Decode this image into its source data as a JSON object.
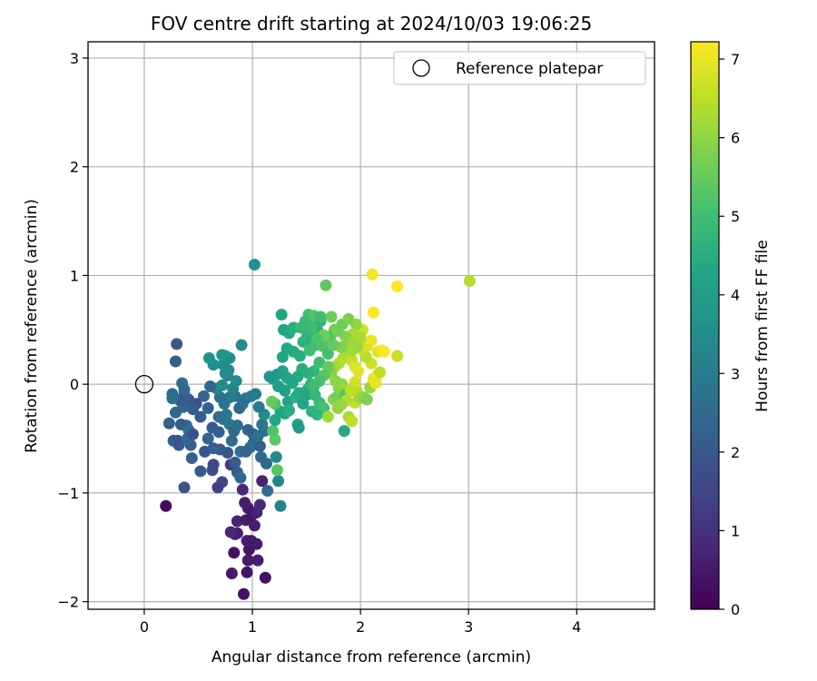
{
  "chart_data": {
    "type": "scatter",
    "title": "FOV centre drift starting at 2024/10/03 19:06:25",
    "xlabel": "Angular distance from reference (arcmin)",
    "ylabel": "Rotation from reference (arcmin)",
    "xlim": [
      -0.52,
      4.72
    ],
    "ylim": [
      -2.07,
      3.15
    ],
    "xticks": [
      0,
      1,
      2,
      3,
      4
    ],
    "yticks": [
      -2,
      -1,
      0,
      1,
      2,
      3
    ],
    "xtick_labels": [
      "0",
      "1",
      "2",
      "3",
      "4"
    ],
    "ytick_labels": [
      "−2",
      "−1",
      "0",
      "1",
      "2",
      "3"
    ],
    "grid": true,
    "legend": {
      "label": "Reference platepar",
      "placement": "top-right"
    },
    "reference_point": {
      "x": 0,
      "y": 0
    },
    "colorbar": {
      "label": "Hours from first FF file",
      "min": 0,
      "max": 7.22,
      "ticks": [
        0,
        1,
        2,
        3,
        4,
        5,
        6,
        7
      ],
      "tick_labels": [
        "0",
        "1",
        "2",
        "3",
        "4",
        "5",
        "6",
        "7"
      ],
      "colormap": "viridis"
    },
    "points": [
      {
        "x": 0.2,
        "y": -1.12,
        "t": 0.2
      },
      {
        "x": 0.92,
        "y": -1.93,
        "t": 0.3
      },
      {
        "x": 1.12,
        "y": -1.78,
        "t": 0.4
      },
      {
        "x": 0.81,
        "y": -1.74,
        "t": 0.5
      },
      {
        "x": 0.95,
        "y": -1.73,
        "t": 0.4
      },
      {
        "x": 0.96,
        "y": -1.62,
        "t": 0.5
      },
      {
        "x": 1.05,
        "y": -1.62,
        "t": 0.6
      },
      {
        "x": 0.83,
        "y": -1.55,
        "t": 0.3
      },
      {
        "x": 0.97,
        "y": -1.52,
        "t": 0.4
      },
      {
        "x": 1.04,
        "y": -1.47,
        "t": 0.5
      },
      {
        "x": 0.95,
        "y": -1.44,
        "t": 0.6
      },
      {
        "x": 0.99,
        "y": -1.44,
        "t": 0.5
      },
      {
        "x": 0.84,
        "y": -1.38,
        "t": 0.7
      },
      {
        "x": 0.86,
        "y": -1.37,
        "t": 0.6
      },
      {
        "x": 0.8,
        "y": -1.36,
        "t": 0.8
      },
      {
        "x": 1.02,
        "y": -1.3,
        "t": 0.6
      },
      {
        "x": 0.86,
        "y": -1.26,
        "t": 0.7
      },
      {
        "x": 0.94,
        "y": -1.25,
        "t": 0.5
      },
      {
        "x": 1.0,
        "y": -1.2,
        "t": 0.4
      },
      {
        "x": 1.04,
        "y": -1.18,
        "t": 0.7
      },
      {
        "x": 0.96,
        "y": -1.14,
        "t": 0.5
      },
      {
        "x": 1.07,
        "y": -1.11,
        "t": 0.8
      },
      {
        "x": 0.93,
        "y": -1.09,
        "t": 0.6
      },
      {
        "x": 1.09,
        "y": -0.89,
        "t": 0.7
      },
      {
        "x": 0.91,
        "y": -0.97,
        "t": 0.9
      },
      {
        "x": 1.14,
        "y": -0.98,
        "t": 2.5
      },
      {
        "x": 0.37,
        "y": -0.95,
        "t": 1.9
      },
      {
        "x": 0.72,
        "y": -0.9,
        "t": 1.5
      },
      {
        "x": 0.8,
        "y": -0.74,
        "t": 1.3
      },
      {
        "x": 0.64,
        "y": -0.74,
        "t": 1.6
      },
      {
        "x": 0.63,
        "y": -0.79,
        "t": 1.7
      },
      {
        "x": 0.52,
        "y": -0.8,
        "t": 2.0
      },
      {
        "x": 0.68,
        "y": -0.95,
        "t": 1.4
      },
      {
        "x": 0.86,
        "y": -0.81,
        "t": 2.2
      },
      {
        "x": 0.89,
        "y": -0.86,
        "t": 2.4
      },
      {
        "x": 0.84,
        "y": -0.72,
        "t": 2.1
      },
      {
        "x": 0.89,
        "y": -0.62,
        "t": 2.6
      },
      {
        "x": 0.77,
        "y": -0.63,
        "t": 1.8
      },
      {
        "x": 0.7,
        "y": -0.6,
        "t": 2.0
      },
      {
        "x": 0.64,
        "y": -0.59,
        "t": 2.2
      },
      {
        "x": 0.56,
        "y": -0.62,
        "t": 1.9
      },
      {
        "x": 0.59,
        "y": -0.5,
        "t": 2.3
      },
      {
        "x": 0.43,
        "y": -0.56,
        "t": 2.1
      },
      {
        "x": 0.32,
        "y": -0.56,
        "t": 2.0
      },
      {
        "x": 0.27,
        "y": -0.52,
        "t": 2.2
      },
      {
        "x": 0.31,
        "y": -0.52,
        "t": 1.9
      },
      {
        "x": 0.44,
        "y": -0.68,
        "t": 2.3
      },
      {
        "x": 0.4,
        "y": -0.5,
        "t": 2.5
      },
      {
        "x": 0.39,
        "y": -0.38,
        "t": 2.4
      },
      {
        "x": 0.34,
        "y": -0.37,
        "t": 2.1
      },
      {
        "x": 0.23,
        "y": -0.36,
        "t": 2.2
      },
      {
        "x": 0.41,
        "y": -0.42,
        "t": 2.6
      },
      {
        "x": 0.45,
        "y": -0.46,
        "t": 1.8
      },
      {
        "x": 0.63,
        "y": -0.4,
        "t": 2.0
      },
      {
        "x": 0.69,
        "y": -0.44,
        "t": 2.2
      },
      {
        "x": 0.69,
        "y": -0.3,
        "t": 2.5
      },
      {
        "x": 0.73,
        "y": -0.32,
        "t": 2.6
      },
      {
        "x": 0.76,
        "y": -0.28,
        "t": 2.8
      },
      {
        "x": 0.79,
        "y": -0.37,
        "t": 2.9
      },
      {
        "x": 0.83,
        "y": -0.43,
        "t": 2.4
      },
      {
        "x": 0.86,
        "y": -0.38,
        "t": 2.7
      },
      {
        "x": 0.81,
        "y": -0.52,
        "t": 2.5
      },
      {
        "x": 0.96,
        "y": -0.42,
        "t": 2.3
      },
      {
        "x": 1.01,
        "y": -0.46,
        "t": 2.2
      },
      {
        "x": 1.01,
        "y": -0.54,
        "t": 2.4
      },
      {
        "x": 0.98,
        "y": -0.58,
        "t": 2.6
      },
      {
        "x": 0.94,
        "y": -0.62,
        "t": 2.3
      },
      {
        "x": 1.07,
        "y": -0.57,
        "t": 2.1
      },
      {
        "x": 1.08,
        "y": -0.67,
        "t": 2.5
      },
      {
        "x": 1.11,
        "y": -0.43,
        "t": 2.7
      },
      {
        "x": 1.09,
        "y": -0.37,
        "t": 2.9
      },
      {
        "x": 1.05,
        "y": -0.48,
        "t": 2.6
      },
      {
        "x": 1.13,
        "y": -0.73,
        "t": 2.4
      },
      {
        "x": 1.22,
        "y": -0.67,
        "t": 3.4
      },
      {
        "x": 1.24,
        "y": -0.89,
        "t": 3.3
      },
      {
        "x": 1.26,
        "y": -1.12,
        "t": 3.2
      },
      {
        "x": 1.23,
        "y": -0.79,
        "t": 5.3
      },
      {
        "x": 1.21,
        "y": -0.51,
        "t": 5.4
      },
      {
        "x": 1.19,
        "y": -0.43,
        "t": 5.2
      },
      {
        "x": 1.21,
        "y": -0.33,
        "t": 4.3
      },
      {
        "x": 1.11,
        "y": -0.28,
        "t": 3.5
      },
      {
        "x": 1.06,
        "y": -0.21,
        "t": 3.0
      },
      {
        "x": 1.03,
        "y": -0.09,
        "t": 2.9
      },
      {
        "x": 0.99,
        "y": -0.11,
        "t": 3.1
      },
      {
        "x": 0.94,
        "y": -0.13,
        "t": 2.8
      },
      {
        "x": 0.91,
        "y": -0.18,
        "t": 2.6
      },
      {
        "x": 0.88,
        "y": -0.22,
        "t": 2.5
      },
      {
        "x": 0.84,
        "y": -0.11,
        "t": 2.7
      },
      {
        "x": 0.82,
        "y": -0.04,
        "t": 3.2
      },
      {
        "x": 0.79,
        "y": -0.12,
        "t": 3.0
      },
      {
        "x": 0.74,
        "y": -0.18,
        "t": 2.9
      },
      {
        "x": 0.7,
        "y": -0.12,
        "t": 2.6
      },
      {
        "x": 0.67,
        "y": -0.04,
        "t": 3.2
      },
      {
        "x": 0.72,
        "y": -0.01,
        "t": 3.4
      },
      {
        "x": 0.77,
        "y": 0.08,
        "t": 3.3
      },
      {
        "x": 0.85,
        "y": 0.03,
        "t": 3.5
      },
      {
        "x": 0.78,
        "y": 0.13,
        "t": 3.4
      },
      {
        "x": 0.73,
        "y": 0.18,
        "t": 3.5
      },
      {
        "x": 0.64,
        "y": 0.18,
        "t": 3.6
      },
      {
        "x": 0.6,
        "y": 0.24,
        "t": 3.7
      },
      {
        "x": 0.72,
        "y": 0.27,
        "t": 3.8
      },
      {
        "x": 0.75,
        "y": 0.26,
        "t": 3.7
      },
      {
        "x": 0.79,
        "y": 0.24,
        "t": 3.6
      },
      {
        "x": 0.75,
        "y": 0.1,
        "t": 3.4
      },
      {
        "x": 0.9,
        "y": 0.36,
        "t": 3.5
      },
      {
        "x": 1.02,
        "y": 1.1,
        "t": 3.6
      },
      {
        "x": 0.61,
        "y": -0.02,
        "t": 2.4
      },
      {
        "x": 0.55,
        "y": -0.11,
        "t": 2.3
      },
      {
        "x": 0.59,
        "y": -0.22,
        "t": 2.2
      },
      {
        "x": 0.52,
        "y": -0.3,
        "t": 2.1
      },
      {
        "x": 0.48,
        "y": -0.18,
        "t": 1.8
      },
      {
        "x": 0.41,
        "y": -0.14,
        "t": 2.0
      },
      {
        "x": 0.37,
        "y": -0.1,
        "t": 2.1
      },
      {
        "x": 0.45,
        "y": -0.23,
        "t": 2.2
      },
      {
        "x": 0.36,
        "y": -0.21,
        "t": 2.3
      },
      {
        "x": 0.29,
        "y": -0.26,
        "t": 2.4
      },
      {
        "x": 0.33,
        "y": -0.15,
        "t": 2.1
      },
      {
        "x": 0.26,
        "y": -0.09,
        "t": 2.5
      },
      {
        "x": 0.26,
        "y": -0.13,
        "t": 2.6
      },
      {
        "x": 0.35,
        "y": 0.01,
        "t": 2.7
      },
      {
        "x": 0.37,
        "y": -0.05,
        "t": 2.5
      },
      {
        "x": 0.3,
        "y": 0.37,
        "t": 2.0
      },
      {
        "x": 0.29,
        "y": 0.21,
        "t": 2.2
      },
      {
        "x": 1.27,
        "y": 0.64,
        "t": 4.3
      },
      {
        "x": 1.29,
        "y": 0.5,
        "t": 4.2
      },
      {
        "x": 1.34,
        "y": 0.47,
        "t": 4.4
      },
      {
        "x": 1.38,
        "y": 0.52,
        "t": 4.5
      },
      {
        "x": 1.32,
        "y": 0.33,
        "t": 4.3
      },
      {
        "x": 1.28,
        "y": 0.25,
        "t": 4.2
      },
      {
        "x": 1.38,
        "y": 0.3,
        "t": 4.4
      },
      {
        "x": 1.44,
        "y": 0.26,
        "t": 4.5
      },
      {
        "x": 1.47,
        "y": 0.39,
        "t": 4.6
      },
      {
        "x": 1.51,
        "y": 0.45,
        "t": 4.7
      },
      {
        "x": 1.54,
        "y": 0.39,
        "t": 4.5
      },
      {
        "x": 1.58,
        "y": 0.36,
        "t": 4.8
      },
      {
        "x": 1.6,
        "y": 0.5,
        "t": 4.6
      },
      {
        "x": 1.55,
        "y": 0.6,
        "t": 4.5
      },
      {
        "x": 1.63,
        "y": 0.58,
        "t": 4.7
      },
      {
        "x": 1.52,
        "y": 0.64,
        "t": 5.1
      },
      {
        "x": 1.57,
        "y": 0.63,
        "t": 5.2
      },
      {
        "x": 1.63,
        "y": 0.62,
        "t": 5.0
      },
      {
        "x": 1.68,
        "y": 0.91,
        "t": 5.4
      },
      {
        "x": 1.73,
        "y": 0.62,
        "t": 5.6
      },
      {
        "x": 1.76,
        "y": 0.5,
        "t": 5.5
      },
      {
        "x": 1.72,
        "y": 0.44,
        "t": 5.3
      },
      {
        "x": 1.67,
        "y": 0.4,
        "t": 5.4
      },
      {
        "x": 1.65,
        "y": 0.35,
        "t": 5.2
      },
      {
        "x": 1.7,
        "y": 0.28,
        "t": 5.1
      },
      {
        "x": 1.62,
        "y": 0.2,
        "t": 4.9
      },
      {
        "x": 1.57,
        "y": 0.12,
        "t": 4.8
      },
      {
        "x": 1.52,
        "y": 0.1,
        "t": 4.6
      },
      {
        "x": 1.46,
        "y": 0.14,
        "t": 4.5
      },
      {
        "x": 1.42,
        "y": 0.07,
        "t": 4.4
      },
      {
        "x": 1.37,
        "y": 0.01,
        "t": 4.3
      },
      {
        "x": 1.32,
        "y": 0.06,
        "t": 4.2
      },
      {
        "x": 1.28,
        "y": 0.12,
        "t": 4.1
      },
      {
        "x": 1.23,
        "y": 0.09,
        "t": 4.0
      },
      {
        "x": 1.19,
        "y": 0.05,
        "t": 3.9
      },
      {
        "x": 1.16,
        "y": 0.07,
        "t": 3.8
      },
      {
        "x": 1.24,
        "y": -0.02,
        "t": 4.0
      },
      {
        "x": 1.3,
        "y": -0.06,
        "t": 4.1
      },
      {
        "x": 1.33,
        "y": -0.16,
        "t": 4.2
      },
      {
        "x": 1.3,
        "y": -0.27,
        "t": 4.4
      },
      {
        "x": 1.26,
        "y": -0.25,
        "t": 4.3
      },
      {
        "x": 1.34,
        "y": -0.24,
        "t": 4.5
      },
      {
        "x": 1.4,
        "y": -0.12,
        "t": 4.6
      },
      {
        "x": 1.43,
        "y": -0.08,
        "t": 4.4
      },
      {
        "x": 1.47,
        "y": -0.18,
        "t": 4.2
      },
      {
        "x": 1.51,
        "y": -0.05,
        "t": 4.5
      },
      {
        "x": 1.5,
        "y": -0.1,
        "t": 4.3
      },
      {
        "x": 1.54,
        "y": 0.0,
        "t": 4.6
      },
      {
        "x": 1.58,
        "y": -0.1,
        "t": 4.8
      },
      {
        "x": 1.62,
        "y": -0.17,
        "t": 4.9
      },
      {
        "x": 1.66,
        "y": -0.22,
        "t": 5.1
      },
      {
        "x": 1.6,
        "y": -0.28,
        "t": 4.7
      },
      {
        "x": 1.55,
        "y": -0.25,
        "t": 4.6
      },
      {
        "x": 1.42,
        "y": -0.37,
        "t": 4.1
      },
      {
        "x": 1.43,
        "y": -0.4,
        "t": 3.9
      },
      {
        "x": 1.21,
        "y": -0.18,
        "t": 5.2
      },
      {
        "x": 1.18,
        "y": -0.16,
        "t": 5.5
      },
      {
        "x": 1.7,
        "y": -0.3,
        "t": 6.2
      },
      {
        "x": 1.75,
        "y": -0.14,
        "t": 6.0
      },
      {
        "x": 1.78,
        "y": -0.12,
        "t": 5.7
      },
      {
        "x": 1.8,
        "y": -0.04,
        "t": 5.9
      },
      {
        "x": 1.83,
        "y": 0.0,
        "t": 6.1
      },
      {
        "x": 1.85,
        "y": -0.43,
        "t": 4.4
      },
      {
        "x": 1.86,
        "y": -0.1,
        "t": 5.3
      },
      {
        "x": 1.89,
        "y": -0.3,
        "t": 6.3
      },
      {
        "x": 1.92,
        "y": -0.34,
        "t": 6.5
      },
      {
        "x": 1.95,
        "y": -0.17,
        "t": 6.6
      },
      {
        "x": 1.97,
        "y": -0.07,
        "t": 6.4
      },
      {
        "x": 1.99,
        "y": -0.13,
        "t": 6.2
      },
      {
        "x": 2.03,
        "y": -0.12,
        "t": 6.0
      },
      {
        "x": 2.06,
        "y": -0.14,
        "t": 5.8
      },
      {
        "x": 2.09,
        "y": -0.03,
        "t": 6.1
      },
      {
        "x": 2.12,
        "y": 0.05,
        "t": 6.9
      },
      {
        "x": 2.15,
        "y": 0.08,
        "t": 7.1
      },
      {
        "x": 2.14,
        "y": 0.01,
        "t": 7.0
      },
      {
        "x": 2.18,
        "y": 0.11,
        "t": 6.5
      },
      {
        "x": 2.1,
        "y": 0.19,
        "t": 6.7
      },
      {
        "x": 2.05,
        "y": 0.25,
        "t": 6.4
      },
      {
        "x": 2.01,
        "y": 0.32,
        "t": 6.6
      },
      {
        "x": 2.06,
        "y": 0.35,
        "t": 6.8
      },
      {
        "x": 2.1,
        "y": 0.4,
        "t": 7.0
      },
      {
        "x": 2.16,
        "y": 0.3,
        "t": 6.9
      },
      {
        "x": 2.2,
        "y": 0.31,
        "t": 7.1
      },
      {
        "x": 2.22,
        "y": 0.3,
        "t": 7.2
      },
      {
        "x": 2.11,
        "y": 1.01,
        "t": 7.1
      },
      {
        "x": 2.34,
        "y": 0.9,
        "t": 7.2
      },
      {
        "x": 2.12,
        "y": 0.66,
        "t": 7.2
      },
      {
        "x": 2.34,
        "y": 0.26,
        "t": 6.6
      },
      {
        "x": 3.01,
        "y": 0.95,
        "t": 6.4
      },
      {
        "x": 2.02,
        "y": 0.5,
        "t": 6.7
      },
      {
        "x": 1.96,
        "y": 0.55,
        "t": 6.0
      },
      {
        "x": 1.93,
        "y": 0.46,
        "t": 6.3
      },
      {
        "x": 1.9,
        "y": 0.4,
        "t": 6.2
      },
      {
        "x": 1.87,
        "y": 0.33,
        "t": 6.1
      },
      {
        "x": 1.84,
        "y": 0.24,
        "t": 6.3
      },
      {
        "x": 1.8,
        "y": 0.19,
        "t": 6.4
      },
      {
        "x": 1.76,
        "y": 0.16,
        "t": 6.2
      },
      {
        "x": 1.73,
        "y": 0.1,
        "t": 5.9
      },
      {
        "x": 1.77,
        "y": 0.03,
        "t": 6.0
      },
      {
        "x": 1.92,
        "y": 0.22,
        "t": 6.6
      },
      {
        "x": 1.95,
        "y": 0.16,
        "t": 6.8
      },
      {
        "x": 1.98,
        "y": 0.12,
        "t": 6.9
      },
      {
        "x": 1.95,
        "y": 0.02,
        "t": 6.7
      },
      {
        "x": 1.91,
        "y": -0.06,
        "t": 6.5
      },
      {
        "x": 1.87,
        "y": -0.15,
        "t": 6.4
      },
      {
        "x": 1.82,
        "y": -0.19,
        "t": 6.1
      },
      {
        "x": 1.79,
        "y": -0.22,
        "t": 6.0
      },
      {
        "x": 1.97,
        "y": 0.35,
        "t": 6.1
      },
      {
        "x": 2.0,
        "y": 0.43,
        "t": 6.3
      },
      {
        "x": 1.66,
        "y": 0.45,
        "t": 5.6
      },
      {
        "x": 1.6,
        "y": 0.42,
        "t": 5.2
      },
      {
        "x": 1.55,
        "y": 0.52,
        "t": 5.0
      },
      {
        "x": 1.49,
        "y": 0.58,
        "t": 4.9
      },
      {
        "x": 1.45,
        "y": 0.52,
        "t": 4.8
      },
      {
        "x": 1.7,
        "y": 0.16,
        "t": 5.5
      },
      {
        "x": 1.66,
        "y": 0.08,
        "t": 5.3
      },
      {
        "x": 1.62,
        "y": 0.03,
        "t": 5.1
      },
      {
        "x": 1.57,
        "y": -0.02,
        "t": 4.9
      },
      {
        "x": 1.53,
        "y": 0.31,
        "t": 5.0
      },
      {
        "x": 1.82,
        "y": 0.34,
        "t": 5.8
      },
      {
        "x": 1.86,
        "y": 0.44,
        "t": 5.9
      },
      {
        "x": 1.79,
        "y": 0.49,
        "t": 5.7
      },
      {
        "x": 1.83,
        "y": 0.55,
        "t": 5.6
      },
      {
        "x": 1.89,
        "y": 0.6,
        "t": 5.8
      },
      {
        "x": 1.92,
        "y": 0.31,
        "t": 6.2
      },
      {
        "x": 1.75,
        "y": 0.36,
        "t": 5.5
      }
    ]
  }
}
